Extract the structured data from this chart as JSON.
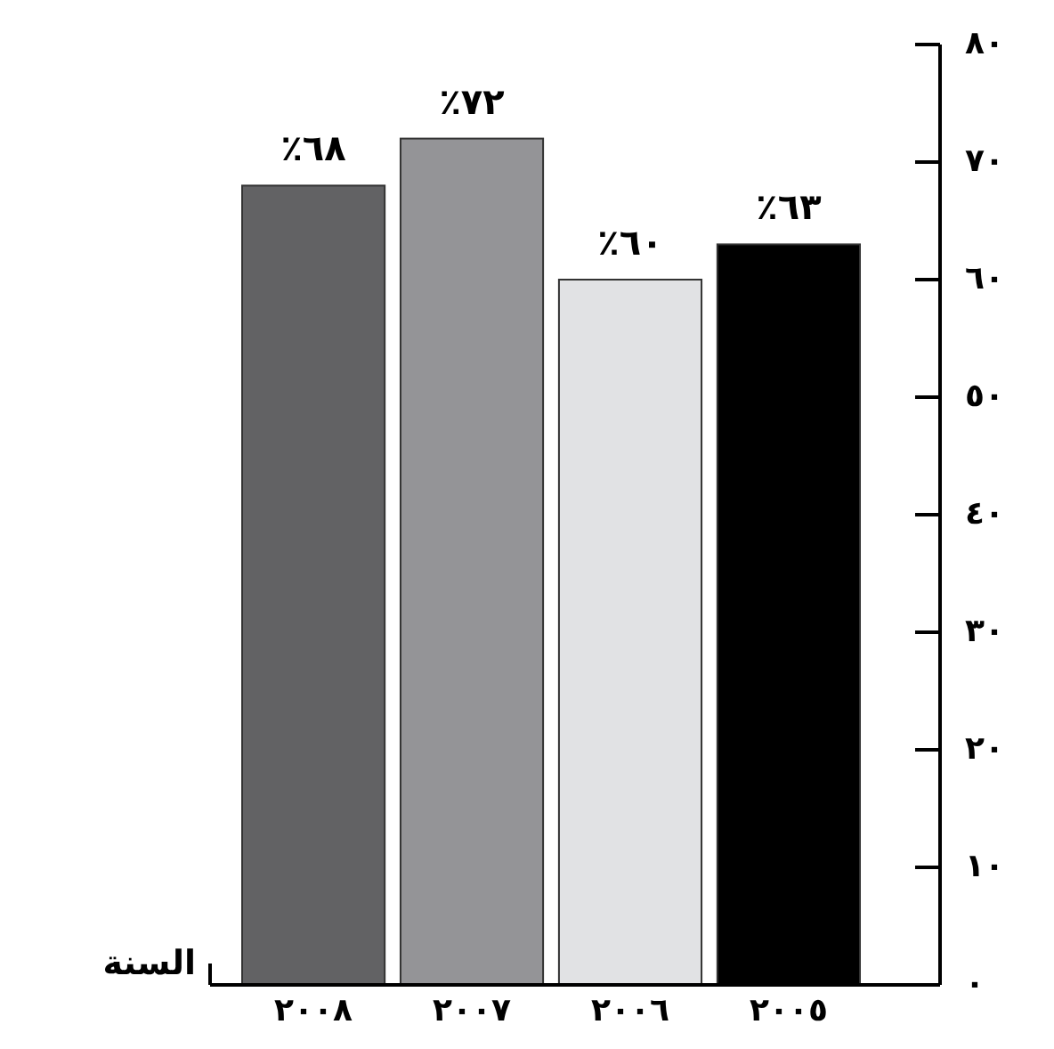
{
  "chart_data": {
    "type": "bar",
    "xlabel": "السنة",
    "categories": [
      "٢٠٠٨",
      "٢٠٠٧",
      "٢٠٠٦",
      "٢٠٠٥"
    ],
    "values": [
      68,
      72,
      60,
      63
    ],
    "colors": [
      "#626264",
      "#949497",
      "#e1e2e4",
      "#000000"
    ],
    "value_labels": [
      "٪٦٨",
      "٪٧٢",
      "٪٦٠",
      "٪٦٣"
    ],
    "ylim": [
      0,
      80
    ],
    "yticks": [
      {
        "value": 0,
        "label": "٠"
      },
      {
        "value": 10,
        "label": "١٠"
      },
      {
        "value": 20,
        "label": "٢٠"
      },
      {
        "value": 30,
        "label": "٣٠"
      },
      {
        "value": 40,
        "label": "٤٠"
      },
      {
        "value": 50,
        "label": "٥٠"
      },
      {
        "value": 60,
        "label": "٦٠"
      },
      {
        "value": 70,
        "label": "٧٠"
      },
      {
        "value": 80,
        "label": "٨٠"
      }
    ],
    "grid": false
  }
}
